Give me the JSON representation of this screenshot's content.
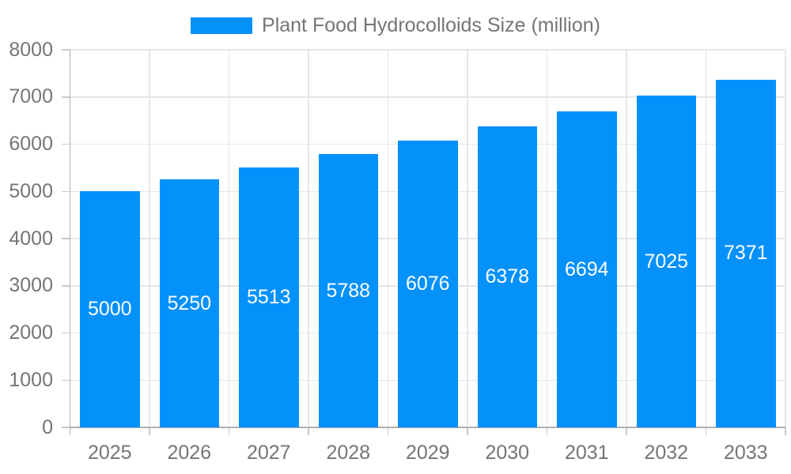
{
  "chart_data": {
    "type": "bar",
    "title": "",
    "legend_label": "Plant Food Hydrocolloids Size (million)",
    "legend_position": "top",
    "categories": [
      "2025",
      "2026",
      "2027",
      "2028",
      "2029",
      "2030",
      "2031",
      "2032",
      "2033"
    ],
    "values": [
      5000,
      5250,
      5513,
      5788,
      6076,
      6378,
      6694,
      7025,
      7371
    ],
    "xlabel": "",
    "ylabel": "",
    "ylim": [
      0,
      8000
    ],
    "ytick_step": 1000,
    "yticks": [
      "0",
      "1000",
      "2000",
      "3000",
      "4000",
      "5000",
      "6000",
      "7000",
      "8000"
    ],
    "grid": true,
    "value_labels_inside_bars": true,
    "colors": {
      "bar": "#0591fa",
      "value_label": "#ffffff",
      "axis_text": "#757575",
      "gridline": "#e6e6e6",
      "axis_line": "#b0b0b0",
      "tick": "#c9c9c9",
      "background": "#ffffff"
    }
  }
}
